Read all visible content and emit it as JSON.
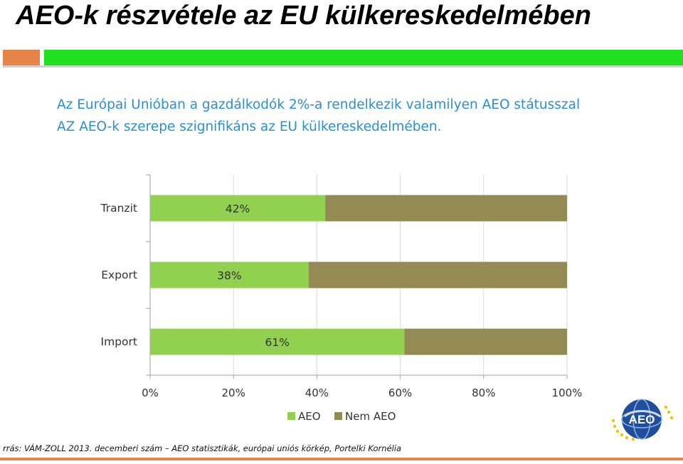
{
  "slide": {
    "title": "AEO-k részvétele az EU külkereskedelmében",
    "subtitle_lines": [
      "Az Európai Unióban a gazdálkodók 2%-a rendelkezik valamilyen AEO státusszal",
      "AZ AEO-k szerepe szignifikáns az EU külkereskedelmében."
    ],
    "source": "rrás: VÁM-ZOLL 2013. decemberi szám – AEO statisztikák, európai uniós körkép, Portelki Kornélia",
    "logo_text": "AEO"
  },
  "chart_data": {
    "type": "bar",
    "orientation": "horizontal",
    "stacked": true,
    "percent_stacked": true,
    "categories": [
      "Tranzit",
      "Export",
      "Import"
    ],
    "series": [
      {
        "name": "AEO",
        "values": [
          42,
          38,
          61
        ],
        "labels": [
          "42%",
          "38%",
          "61%"
        ],
        "color": "#92d050"
      },
      {
        "name": "Nem AEO",
        "values": [
          58,
          62,
          39
        ],
        "color": "#948a54"
      }
    ],
    "x_ticks": [
      "0%",
      "20%",
      "40%",
      "60%",
      "80%",
      "100%"
    ],
    "xlim": [
      0,
      100
    ],
    "grid": true,
    "legend_position": "bottom"
  }
}
